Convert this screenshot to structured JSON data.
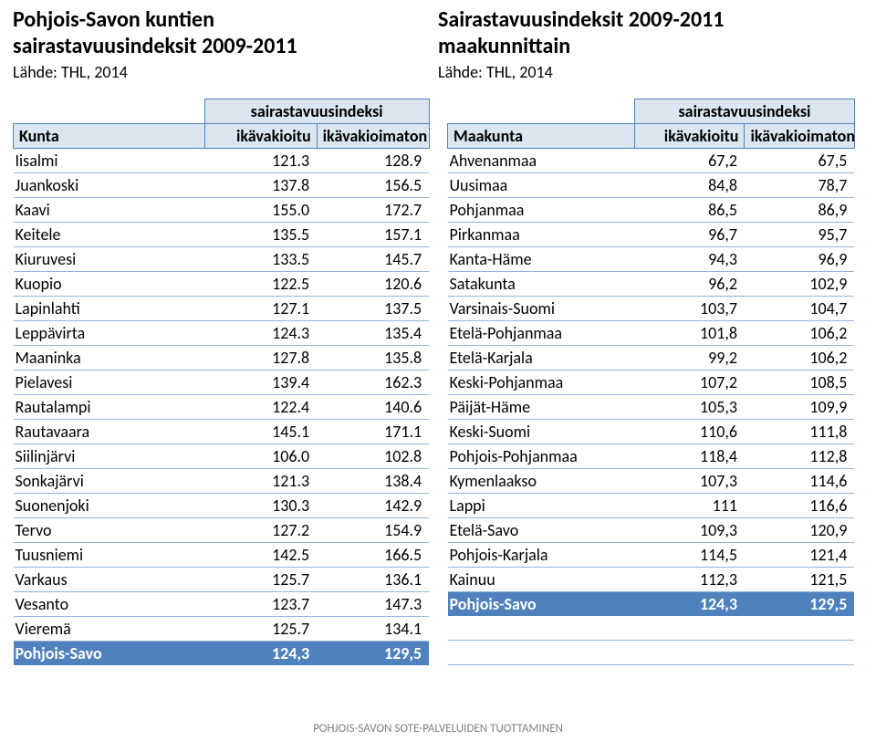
{
  "left": {
    "title1": "Pohjois-Savon kuntien",
    "title2": "sairastavuusindeksit 2009-2011",
    "source": "Lähde: THL, 2014",
    "superHeader": "sairastavuusindeksi",
    "colHeaders": {
      "name": "Kunta",
      "v1": "ikävakioitu",
      "v2": "ikävakioimaton"
    },
    "rows": [
      {
        "name": "Iisalmi",
        "v1": "121.3",
        "v2": "128.9"
      },
      {
        "name": "Juankoski",
        "v1": "137.8",
        "v2": "156.5"
      },
      {
        "name": "Kaavi",
        "v1": "155.0",
        "v2": "172.7"
      },
      {
        "name": "Keitele",
        "v1": "135.5",
        "v2": "157.1"
      },
      {
        "name": "Kiuruvesi",
        "v1": "133.5",
        "v2": "145.7"
      },
      {
        "name": "Kuopio",
        "v1": "122.5",
        "v2": "120.6"
      },
      {
        "name": "Lapinlahti",
        "v1": "127.1",
        "v2": "137.5"
      },
      {
        "name": "Leppävirta",
        "v1": "124.3",
        "v2": "135.4"
      },
      {
        "name": "Maaninka",
        "v1": "127.8",
        "v2": "135.8"
      },
      {
        "name": "Pielavesi",
        "v1": "139.4",
        "v2": "162.3"
      },
      {
        "name": "Rautalampi",
        "v1": "122.4",
        "v2": "140.6"
      },
      {
        "name": "Rautavaara",
        "v1": "145.1",
        "v2": "171.1"
      },
      {
        "name": "Siilinjärvi",
        "v1": "106.0",
        "v2": "102.8"
      },
      {
        "name": "Sonkajärvi",
        "v1": "121.3",
        "v2": "138.4"
      },
      {
        "name": "Suonenjoki",
        "v1": "130.3",
        "v2": "142.9"
      },
      {
        "name": "Tervo",
        "v1": "127.2",
        "v2": "154.9"
      },
      {
        "name": "Tuusniemi",
        "v1": "142.5",
        "v2": "166.5"
      },
      {
        "name": "Varkaus",
        "v1": "125.7",
        "v2": "136.1"
      },
      {
        "name": "Vesanto",
        "v1": "123.7",
        "v2": "147.3"
      },
      {
        "name": "Vieremä",
        "v1": "125.7",
        "v2": "134.1"
      }
    ],
    "summary": {
      "name": "Pohjois-Savo",
      "v1": "124,3",
      "v2": "129,5"
    }
  },
  "right": {
    "title1": "Sairastavuusindeksit 2009-2011",
    "title2": "maakunnittain",
    "source": "Lähde: THL, 2014",
    "superHeader": "sairastavuusindeksi",
    "colHeaders": {
      "name": "Maakunta",
      "v1": "ikävakioitu",
      "v2": "ikävakioimaton"
    },
    "rows": [
      {
        "name": "Ahvenanmaa",
        "v1": "67,2",
        "v2": "67,5"
      },
      {
        "name": "Uusimaa",
        "v1": "84,8",
        "v2": "78,7"
      },
      {
        "name": "Pohjanmaa",
        "v1": "86,5",
        "v2": "86,9"
      },
      {
        "name": "Pirkanmaa",
        "v1": "96,7",
        "v2": "95,7"
      },
      {
        "name": "Kanta-Häme",
        "v1": "94,3",
        "v2": "96,9"
      },
      {
        "name": "Satakunta",
        "v1": "96,2",
        "v2": "102,9"
      },
      {
        "name": "Varsinais-Suomi",
        "v1": "103,7",
        "v2": "104,7"
      },
      {
        "name": "Etelä-Pohjanmaa",
        "v1": "101,8",
        "v2": "106,2"
      },
      {
        "name": "Etelä-Karjala",
        "v1": "99,2",
        "v2": "106,2"
      },
      {
        "name": "Keski-Pohjanmaa",
        "v1": "107,2",
        "v2": "108,5"
      },
      {
        "name": "Päijät-Häme",
        "v1": "105,3",
        "v2": "109,9"
      },
      {
        "name": "Keski-Suomi",
        "v1": "110,6",
        "v2": "111,8"
      },
      {
        "name": "Pohjois-Pohjanmaa",
        "v1": "118,4",
        "v2": "112,8"
      },
      {
        "name": "Kymenlaakso",
        "v1": "107,3",
        "v2": "114,6"
      },
      {
        "name": "Lappi",
        "v1": "111",
        "v2": "116,6"
      },
      {
        "name": "Etelä-Savo",
        "v1": "109,3",
        "v2": "120,9"
      },
      {
        "name": "Pohjois-Karjala",
        "v1": "114,5",
        "v2": "121,4"
      },
      {
        "name": "Kainuu",
        "v1": "112,3",
        "v2": "121,5"
      }
    ],
    "summary": {
      "name": "Pohjois-Savo",
      "v1": "124,3",
      "v2": "129,5"
    }
  },
  "footer": "POHJOIS-SAVON SOTE-PALVELUIDEN TUOTTAMINEN",
  "colors": {
    "headerFill": "#dce6f1",
    "headerBorder": "#4f81bd",
    "rowBorder": "#95b3d7",
    "highlightFill": "#4f81bd",
    "highlightText": "#ffffff",
    "footerText": "#808080"
  },
  "chart": {
    "type": "table",
    "fontFamily": "Calibri",
    "titleFontSize": 24,
    "bodyFontSize": 18,
    "footerFontSize": 13,
    "columnsLeft": [
      "Kunta",
      "ikävakioitu",
      "ikävakioimaton"
    ],
    "columnsRight": [
      "Maakunta",
      "ikävakioitu",
      "ikävakioimaton"
    ],
    "columnWidthsPct": [
      46,
      27,
      27
    ],
    "rowHeightPx": 26,
    "background": "#ffffff"
  }
}
